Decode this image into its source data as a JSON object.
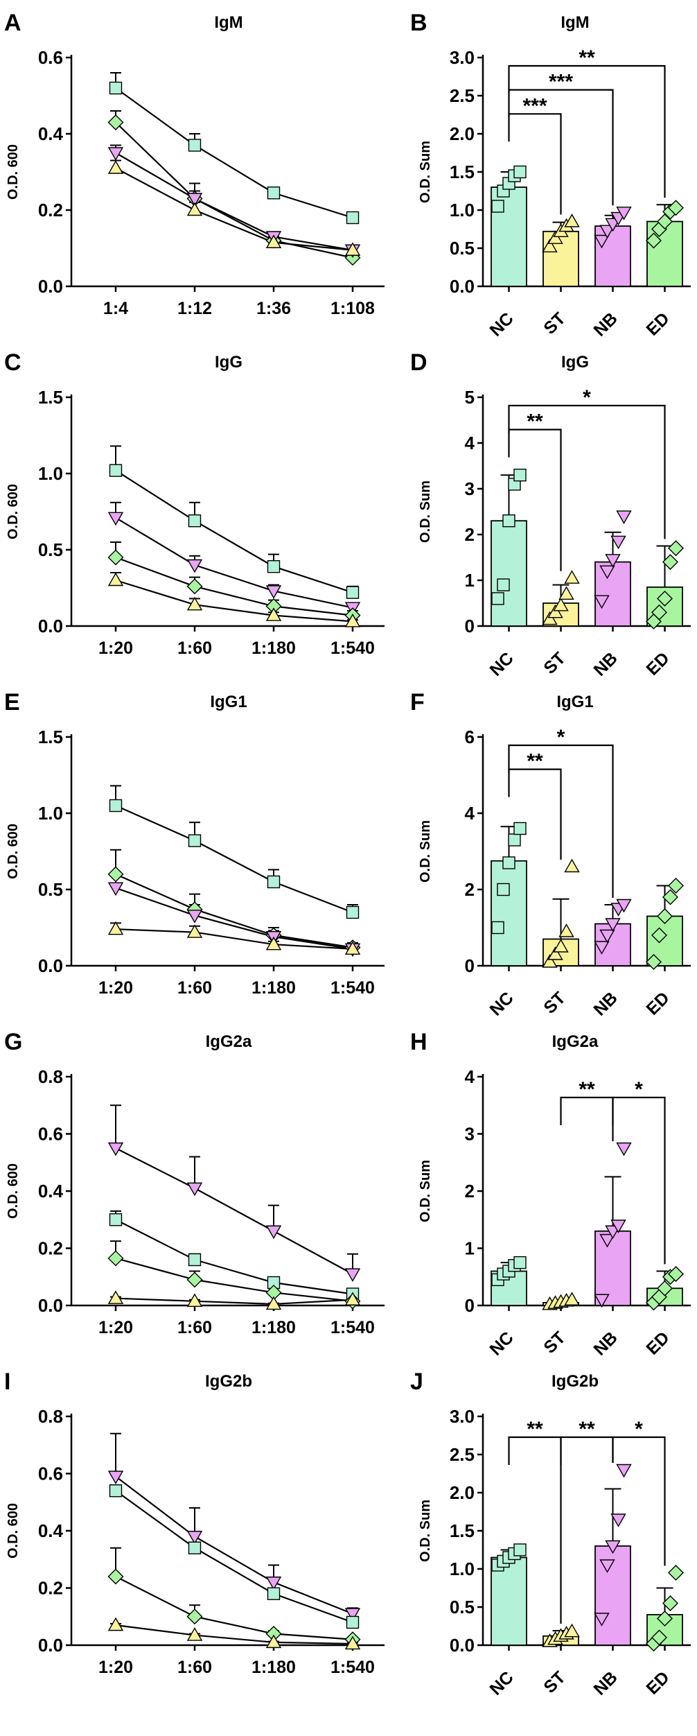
{
  "colors": {
    "NC": "#b3f2d9",
    "ST": "#fbf39a",
    "NB": "#e9a4f3",
    "ED": "#a8f5a0",
    "line_NC": "#adefd7",
    "line_ST": "#faf08f",
    "line_NB": "#e6a0f2",
    "line_ED": "#a3f09b"
  },
  "chart_data": [
    {
      "id": "A",
      "panel_label": "A",
      "type": "line",
      "title": "IgM",
      "xlabel": "",
      "ylabel": "O.D. 600",
      "categories": [
        "1:4",
        "1:12",
        "1:36",
        "1:108"
      ],
      "ylim": [
        0,
        0.6
      ],
      "yticks": [
        "0.0",
        "0.2",
        "0.4",
        "0.6"
      ],
      "ytick_values": [
        0,
        0.2,
        0.4,
        0.6
      ],
      "series": [
        {
          "name": "NC",
          "marker": "square",
          "values": [
            0.52,
            0.37,
            0.245,
            0.18
          ],
          "err": [
            0.04,
            0.03,
            0.01,
            0.005
          ]
        },
        {
          "name": "ED",
          "marker": "diamond",
          "values": [
            0.43,
            0.23,
            0.12,
            0.075
          ],
          "err": [
            0.03,
            0.02,
            0.01,
            0.005
          ]
        },
        {
          "name": "NB",
          "marker": "triangle-down",
          "values": [
            0.35,
            0.23,
            0.13,
            0.095
          ],
          "err": [
            0.02,
            0.04,
            0.01,
            0.01
          ]
        },
        {
          "name": "ST",
          "marker": "triangle-up",
          "values": [
            0.31,
            0.2,
            0.115,
            0.095
          ],
          "err": [
            0.02,
            0.02,
            0.01,
            0.01
          ]
        }
      ]
    },
    {
      "id": "B",
      "panel_label": "B",
      "type": "bar",
      "title": "IgM",
      "xlabel": "",
      "ylabel": "O.D. Sum",
      "categories": [
        "NC",
        "ST",
        "NB",
        "ED"
      ],
      "ylim": [
        0,
        3.0
      ],
      "yticks": [
        "0.0",
        "0.5",
        "1.0",
        "1.5",
        "2.0",
        "2.5",
        "3.0"
      ],
      "ytick_values": [
        0,
        0.5,
        1.0,
        1.5,
        2.0,
        2.5,
        3.0
      ],
      "values": [
        1.3,
        0.72,
        0.79,
        0.85
      ],
      "err": [
        0.2,
        0.12,
        0.14,
        0.22
      ],
      "points": [
        [
          1.05,
          1.25,
          1.35,
          1.45,
          1.5
        ],
        [
          0.52,
          0.63,
          0.72,
          0.79,
          0.85
        ],
        [
          0.6,
          0.73,
          0.82,
          0.9,
          0.97
        ],
        [
          0.6,
          0.75,
          0.85,
          0.98,
          1.03
        ]
      ],
      "significance": [
        {
          "from": 0,
          "to": 1,
          "label": "***"
        },
        {
          "from": 0,
          "to": 2,
          "label": "***"
        },
        {
          "from": 0,
          "to": 3,
          "label": "**"
        }
      ]
    },
    {
      "id": "C",
      "panel_label": "C",
      "type": "line",
      "title": "IgG",
      "xlabel": "",
      "ylabel": "O.D. 600",
      "categories": [
        "1:20",
        "1:60",
        "1:180",
        "1:540"
      ],
      "ylim": [
        0,
        1.5
      ],
      "yticks": [
        "0.0",
        "0.5",
        "1.0",
        "1.5"
      ],
      "ytick_values": [
        0,
        0.5,
        1.0,
        1.5
      ],
      "series": [
        {
          "name": "NC",
          "marker": "square",
          "values": [
            1.02,
            0.69,
            0.39,
            0.22
          ],
          "err": [
            0.16,
            0.12,
            0.08,
            0.04
          ]
        },
        {
          "name": "NB",
          "marker": "triangle-down",
          "values": [
            0.71,
            0.4,
            0.23,
            0.12
          ],
          "err": [
            0.1,
            0.06,
            0.04,
            0.03
          ]
        },
        {
          "name": "ED",
          "marker": "diamond",
          "values": [
            0.45,
            0.26,
            0.13,
            0.07
          ],
          "err": [
            0.1,
            0.06,
            0.04,
            0.03
          ]
        },
        {
          "name": "ST",
          "marker": "triangle-up",
          "values": [
            0.3,
            0.14,
            0.07,
            0.03
          ],
          "err": [
            0.05,
            0.04,
            0.02,
            0.01
          ]
        }
      ]
    },
    {
      "id": "D",
      "panel_label": "D",
      "type": "bar",
      "title": "IgG",
      "xlabel": "",
      "ylabel": "O.D. Sum",
      "categories": [
        "NC",
        "ST",
        "NB",
        "ED"
      ],
      "ylim": [
        0,
        5
      ],
      "yticks": [
        "0",
        "1",
        "2",
        "3",
        "4",
        "5"
      ],
      "ytick_values": [
        0,
        1,
        2,
        3,
        4,
        5
      ],
      "values": [
        2.3,
        0.5,
        1.4,
        0.85
      ],
      "err": [
        1.0,
        0.4,
        0.65,
        0.9
      ],
      "points": [
        [
          0.6,
          0.9,
          2.3,
          3.1,
          3.3
        ],
        [
          0.15,
          0.3,
          0.45,
          0.7,
          1.05
        ],
        [
          0.55,
          1.2,
          1.45,
          1.85,
          2.4
        ],
        [
          0.1,
          0.3,
          0.6,
          1.4,
          1.7
        ]
      ],
      "significance": [
        {
          "from": 0,
          "to": 1,
          "label": "**"
        },
        {
          "from": 0,
          "to": 3,
          "label": "*"
        }
      ]
    },
    {
      "id": "E",
      "panel_label": "E",
      "type": "line",
      "title": "IgG1",
      "xlabel": "",
      "ylabel": "O.D. 600",
      "categories": [
        "1:20",
        "1:60",
        "1:180",
        "1:540"
      ],
      "ylim": [
        0,
        1.5
      ],
      "yticks": [
        "0.0",
        "0.5",
        "1.0",
        "1.5"
      ],
      "ytick_values": [
        0,
        0.5,
        1.0,
        1.5
      ],
      "series": [
        {
          "name": "NC",
          "marker": "square",
          "values": [
            1.05,
            0.82,
            0.55,
            0.35
          ],
          "err": [
            0.13,
            0.12,
            0.08,
            0.05
          ]
        },
        {
          "name": "ED",
          "marker": "diamond",
          "values": [
            0.6,
            0.37,
            0.2,
            0.12
          ],
          "err": [
            0.16,
            0.1,
            0.05,
            0.03
          ]
        },
        {
          "name": "NB",
          "marker": "triangle-down",
          "values": [
            0.51,
            0.33,
            0.19,
            0.11
          ],
          "err": [
            0.1,
            0.07,
            0.04,
            0.03
          ]
        },
        {
          "name": "ST",
          "marker": "triangle-up",
          "values": [
            0.24,
            0.22,
            0.14,
            0.11
          ],
          "err": [
            0.04,
            0.04,
            0.02,
            0.02
          ]
        }
      ]
    },
    {
      "id": "F",
      "panel_label": "F",
      "type": "bar",
      "title": "IgG1",
      "xlabel": "",
      "ylabel": "O.D. Sum",
      "categories": [
        "NC",
        "ST",
        "NB",
        "ED"
      ],
      "ylim": [
        0,
        6
      ],
      "yticks": [
        "0",
        "2",
        "4",
        "6"
      ],
      "ytick_values": [
        0,
        2,
        4,
        6
      ],
      "values": [
        2.75,
        0.7,
        1.1,
        1.3
      ],
      "err": [
        0.9,
        1.05,
        0.5,
        0.8
      ],
      "points": [
        [
          1.0,
          2.0,
          2.7,
          3.3,
          3.6
        ],
        [
          0.1,
          0.3,
          0.5,
          0.9,
          2.6
        ],
        [
          0.5,
          0.8,
          1.1,
          1.5,
          1.6
        ],
        [
          0.1,
          0.8,
          1.3,
          1.8,
          2.1
        ]
      ],
      "significance": [
        {
          "from": 0,
          "to": 1,
          "label": "**"
        },
        {
          "from": 0,
          "to": 2,
          "label": "*"
        }
      ]
    },
    {
      "id": "G",
      "panel_label": "G",
      "type": "line",
      "title": "IgG2a",
      "xlabel": "",
      "ylabel": "O.D. 600",
      "categories": [
        "1:20",
        "1:60",
        "1:180",
        "1:540"
      ],
      "ylim": [
        0,
        0.8
      ],
      "yticks": [
        "0.0",
        "0.2",
        "0.4",
        "0.6",
        "0.8"
      ],
      "ytick_values": [
        0,
        0.2,
        0.4,
        0.6,
        0.8
      ],
      "series": [
        {
          "name": "NB",
          "marker": "triangle-down",
          "values": [
            0.55,
            0.41,
            0.26,
            0.11
          ],
          "err": [
            0.15,
            0.11,
            0.09,
            0.07
          ]
        },
        {
          "name": "NC",
          "marker": "square",
          "values": [
            0.3,
            0.16,
            0.08,
            0.04
          ],
          "err": [
            0.03,
            0.02,
            0.01,
            0.01
          ]
        },
        {
          "name": "ED",
          "marker": "diamond",
          "values": [
            0.165,
            0.09,
            0.045,
            0.015
          ],
          "err": [
            0.06,
            0.03,
            0.015,
            0.01
          ]
        },
        {
          "name": "ST",
          "marker": "triangle-up",
          "values": [
            0.025,
            0.015,
            0.005,
            0.02
          ],
          "err": [
            0.005,
            0.005,
            0.003,
            0.005
          ]
        }
      ]
    },
    {
      "id": "H",
      "panel_label": "H",
      "type": "bar",
      "title": "IgG2a",
      "xlabel": "",
      "ylabel": "O.D. Sum",
      "categories": [
        "NC",
        "ST",
        "NB",
        "ED"
      ],
      "ylim": [
        0,
        4
      ],
      "yticks": [
        "0",
        "1",
        "2",
        "3",
        "4"
      ],
      "ytick_values": [
        0,
        1,
        2,
        3,
        4
      ],
      "values": [
        0.6,
        0.05,
        1.3,
        0.3
      ],
      "err": [
        0.15,
        0.04,
        0.95,
        0.3
      ],
      "points": [
        [
          0.45,
          0.55,
          0.6,
          0.7,
          0.75
        ],
        [
          0.02,
          0.04,
          0.06,
          0.08,
          0.1
        ],
        [
          0.1,
          1.15,
          1.3,
          1.4,
          2.75
        ],
        [
          0.05,
          0.15,
          0.3,
          0.5,
          0.55
        ]
      ],
      "significance": [
        {
          "from": 1,
          "to": 2,
          "label": "**"
        },
        {
          "from": 2,
          "to": 3,
          "label": "*"
        }
      ]
    },
    {
      "id": "I",
      "panel_label": "I",
      "type": "line",
      "title": "IgG2b",
      "xlabel": "",
      "ylabel": "O.D. 600",
      "categories": [
        "1:20",
        "1:60",
        "1:180",
        "1:540"
      ],
      "ylim": [
        0,
        0.8
      ],
      "yticks": [
        "0.0",
        "0.2",
        "0.4",
        "0.6",
        "0.8"
      ],
      "ytick_values": [
        0,
        0.2,
        0.4,
        0.6,
        0.8
      ],
      "series": [
        {
          "name": "NB",
          "marker": "triangle-down",
          "values": [
            0.59,
            0.38,
            0.22,
            0.11
          ],
          "err": [
            0.15,
            0.1,
            0.06,
            0.02
          ]
        },
        {
          "name": "NC",
          "marker": "square",
          "values": [
            0.54,
            0.34,
            0.18,
            0.08
          ],
          "err": [
            0.02,
            0.02,
            0.01,
            0.01
          ]
        },
        {
          "name": "ED",
          "marker": "diamond",
          "values": [
            0.24,
            0.1,
            0.04,
            0.02
          ],
          "err": [
            0.1,
            0.04,
            0.01,
            0.005
          ]
        },
        {
          "name": "ST",
          "marker": "triangle-up",
          "values": [
            0.07,
            0.035,
            0.01,
            0.005
          ],
          "err": [
            0.005,
            0.005,
            0.003,
            0.003
          ]
        }
      ]
    },
    {
      "id": "J",
      "panel_label": "J",
      "type": "bar",
      "title": "IgG2b",
      "xlabel": "",
      "ylabel": "O.D. Sum",
      "categories": [
        "NC",
        "ST",
        "NB",
        "ED"
      ],
      "ylim": [
        0,
        3.0
      ],
      "yticks": [
        "0.0",
        "0.5",
        "1.0",
        "1.5",
        "2.0",
        "2.5",
        "3.0"
      ],
      "ytick_values": [
        0,
        0.5,
        1.0,
        1.5,
        2.0,
        2.5,
        3.0
      ],
      "values": [
        1.15,
        0.12,
        1.3,
        0.4
      ],
      "err": [
        0.1,
        0.07,
        0.75,
        0.35
      ],
      "points": [
        [
          1.05,
          1.1,
          1.15,
          1.2,
          1.25
        ],
        [
          0.05,
          0.08,
          0.12,
          0.15,
          0.18
        ],
        [
          0.35,
          1.05,
          1.3,
          1.65,
          2.3
        ],
        [
          0.02,
          0.1,
          0.35,
          0.55,
          0.95
        ]
      ],
      "significance": [
        {
          "from": 0,
          "to": 1,
          "label": "**"
        },
        {
          "from": 1,
          "to": 2,
          "label": "**"
        },
        {
          "from": 2,
          "to": 3,
          "label": "*"
        }
      ]
    }
  ]
}
